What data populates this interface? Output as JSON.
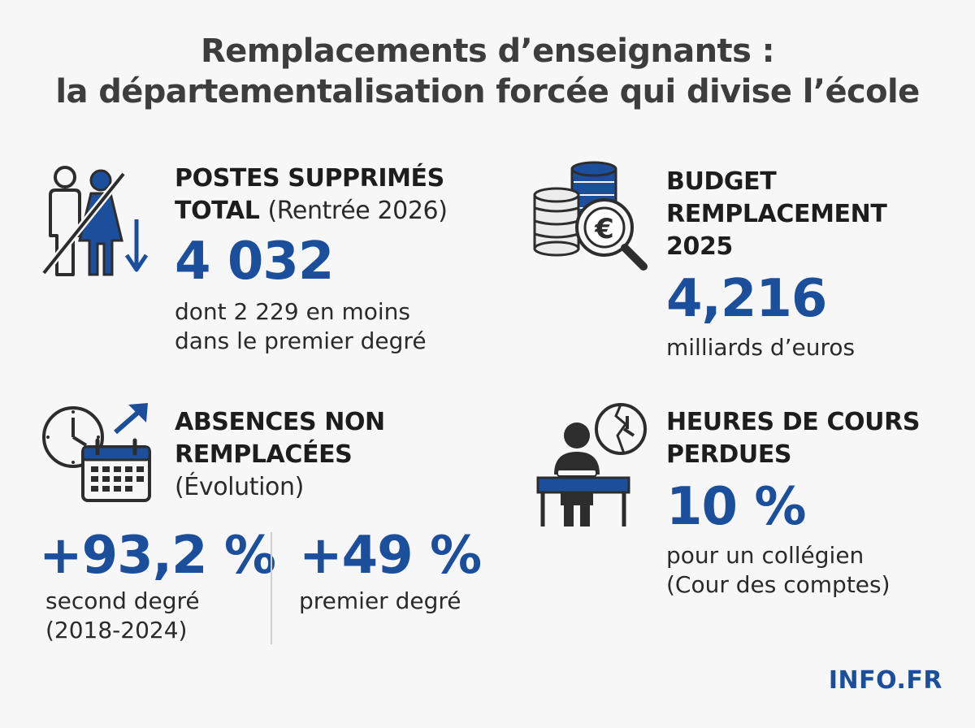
{
  "title": {
    "line1": "Remplacements d’enseignants :",
    "line2": "la départementalisation forcée qui divise l’école"
  },
  "postes": {
    "heading_line1": "POSTES SUPPRIMÉS",
    "heading_line2": "TOTAL",
    "heading_note": "(Rentrée 2026)",
    "value": "4 032",
    "sub_line1": "dont 2 229 en moins",
    "sub_line2": "dans le premier degré",
    "icon": "people-crossed-out-arrow-down-icon"
  },
  "budget": {
    "heading_line1": "BUDGET",
    "heading_line2": "REMPLACEMENT",
    "heading_line3": "2025",
    "value": "4,216",
    "sub": "milliards d’euros",
    "icon": "coins-euro-magnifier-icon"
  },
  "absences": {
    "heading_line1": "ABSENCES NON",
    "heading_line2": "REMPLACÉES",
    "heading_line3": "(Évolution)",
    "second_value": "+93,2 %",
    "second_sub_line1": "second degré",
    "second_sub_line2": "(2018-2024)",
    "first_value": "+49 %",
    "first_sub": "premier degré",
    "icon": "clock-calendar-arrow-up-icon"
  },
  "heures": {
    "heading_line1": "HEURES DE COURS",
    "heading_line2": "PERDUES",
    "value": "10 %",
    "sub_line1": "pour un collégien",
    "sub_line2": "(Cour des comptes)",
    "icon": "student-desk-broken-clock-icon"
  },
  "brand": "INFO.FR",
  "colors": {
    "accent": "#1b4f9c",
    "text": "#2a2a2a",
    "icon_outline": "#2d2d2d",
    "background": "#f7f7f8"
  }
}
